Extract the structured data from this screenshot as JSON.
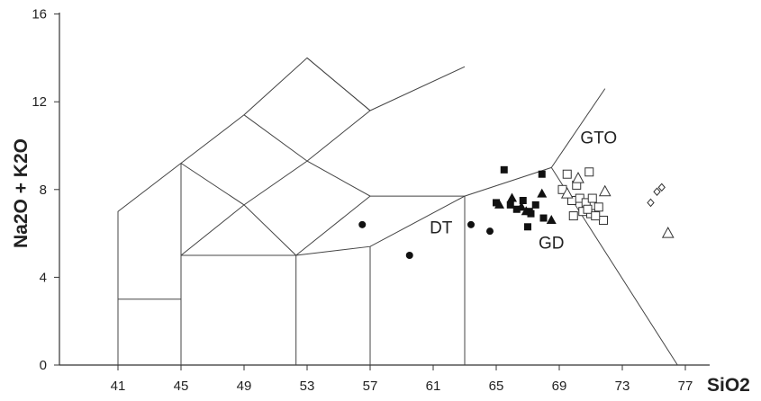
{
  "chart_data": {
    "type": "scatter",
    "xlabel": "SiO2",
    "ylabel": "Na2O + K2O",
    "xlim": [
      35.5,
      80
    ],
    "ylim": [
      0,
      16
    ],
    "xticks": [
      41,
      45,
      49,
      53,
      57,
      61,
      65,
      69,
      73,
      77
    ],
    "yticks": [
      0,
      4,
      8,
      12,
      16
    ],
    "region_labels": [
      {
        "text": "GTO",
        "x": 71.5,
        "y": 10.1
      },
      {
        "text": "DT",
        "x": 61.5,
        "y": 6.0
      },
      {
        "text": "GD",
        "x": 68.5,
        "y": 5.3
      }
    ],
    "field_lines": [
      [
        [
          41,
          0
        ],
        [
          41,
          7
        ],
        [
          45,
          9.2
        ],
        [
          49,
          11.4
        ],
        [
          53,
          14
        ],
        [
          57,
          11.6
        ],
        [
          63,
          13.6
        ]
      ],
      [
        [
          41,
          3
        ],
        [
          45,
          3
        ]
      ],
      [
        [
          45,
          0
        ],
        [
          45,
          9.2
        ]
      ],
      [
        [
          45,
          5
        ],
        [
          52.3,
          5
        ],
        [
          52.3,
          0
        ]
      ],
      [
        [
          45,
          5
        ],
        [
          49,
          7.3
        ],
        [
          53,
          9.3
        ],
        [
          57,
          11.6
        ]
      ],
      [
        [
          49,
          11.4
        ],
        [
          53,
          9.3
        ],
        [
          57,
          7.7
        ],
        [
          63,
          7.7
        ],
        [
          63,
          0
        ]
      ],
      [
        [
          45,
          9.2
        ],
        [
          49,
          7.3
        ],
        [
          52.3,
          5
        ]
      ],
      [
        [
          52.3,
          5
        ],
        [
          57,
          7.7
        ]
      ],
      [
        [
          53,
          14
        ],
        [
          57,
          11.6
        ]
      ],
      [
        [
          57,
          0
        ],
        [
          57,
          5.4
        ]
      ],
      [
        [
          52.3,
          5
        ],
        [
          57,
          5.4
        ],
        [
          63,
          7.7
        ],
        [
          68.5,
          9.0
        ]
      ],
      [
        [
          68.5,
          9.0
        ],
        [
          71.9,
          12.6
        ]
      ],
      [
        [
          68.5,
          9.0
        ],
        [
          76.5,
          0
        ]
      ]
    ],
    "series": [
      {
        "marker": "filled-circle",
        "points": [
          [
            56.5,
            6.4
          ],
          [
            59.5,
            5.0
          ],
          [
            63.4,
            6.4
          ],
          [
            64.6,
            6.1
          ]
        ]
      },
      {
        "marker": "filled-square",
        "points": [
          [
            65.5,
            8.9
          ],
          [
            67.9,
            8.7
          ],
          [
            65.0,
            7.4
          ],
          [
            65.9,
            7.3
          ],
          [
            66.3,
            7.1
          ],
          [
            66.7,
            7.5
          ],
          [
            67.1,
            7.0
          ],
          [
            67.5,
            7.3
          ],
          [
            67.2,
            6.9
          ],
          [
            67.0,
            6.3
          ],
          [
            68.0,
            6.7
          ]
        ]
      },
      {
        "marker": "filled-triangle",
        "points": [
          [
            65.2,
            7.3
          ],
          [
            66.0,
            7.6
          ],
          [
            66.6,
            7.2
          ],
          [
            67.9,
            7.8
          ],
          [
            68.5,
            6.6
          ],
          [
            66.9,
            7.0
          ]
        ]
      },
      {
        "marker": "open-square",
        "points": [
          [
            69.5,
            8.7
          ],
          [
            70.9,
            8.8
          ],
          [
            69.2,
            8.0
          ],
          [
            70.1,
            8.2
          ],
          [
            69.8,
            7.5
          ],
          [
            70.3,
            7.6
          ],
          [
            70.7,
            7.4
          ],
          [
            71.1,
            7.6
          ],
          [
            71.5,
            7.2
          ],
          [
            70.5,
            7.0
          ],
          [
            71.0,
            6.9
          ],
          [
            71.8,
            6.6
          ],
          [
            69.9,
            6.8
          ],
          [
            70.8,
            7.1
          ],
          [
            71.3,
            6.8
          ]
        ]
      },
      {
        "marker": "open-triangle",
        "points": [
          [
            70.2,
            8.5
          ],
          [
            71.9,
            7.9
          ],
          [
            75.9,
            6.0
          ],
          [
            69.5,
            7.8
          ]
        ]
      },
      {
        "marker": "open-diamond",
        "points": [
          [
            75.5,
            8.1
          ],
          [
            75.2,
            7.9
          ],
          [
            74.8,
            7.4
          ]
        ]
      }
    ]
  }
}
